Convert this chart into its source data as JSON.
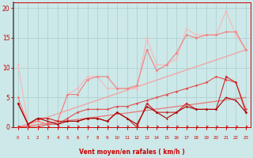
{
  "x": [
    0,
    1,
    2,
    3,
    4,
    5,
    6,
    7,
    8,
    9,
    10,
    11,
    12,
    13,
    14,
    15,
    16,
    17,
    18,
    19,
    20,
    21,
    22,
    23
  ],
  "series": {
    "line1_lightest": [
      10.5,
      0.5,
      1.0,
      0.5,
      1.0,
      5.5,
      6.5,
      8.5,
      8.5,
      6.5,
      6.5,
      6.5,
      6.5,
      15.0,
      10.5,
      10.5,
      11.5,
      16.5,
      15.5,
      15.5,
      15.5,
      19.5,
      15.5,
      13.0
    ],
    "line2_light": [
      5.0,
      0.5,
      1.0,
      0.5,
      1.0,
      5.5,
      5.5,
      8.0,
      8.5,
      8.5,
      6.5,
      6.5,
      7.0,
      13.0,
      9.5,
      10.5,
      12.5,
      15.5,
      15.0,
      15.5,
      15.5,
      16.0,
      16.0,
      13.0
    ],
    "trend1": [
      0.0,
      0.57,
      1.13,
      1.7,
      2.26,
      2.83,
      3.39,
      3.96,
      4.52,
      5.09,
      5.65,
      6.22,
      6.78,
      7.35,
      7.91,
      8.48,
      9.04,
      9.61,
      10.17,
      10.74,
      11.3,
      11.87,
      12.43,
      13.0
    ],
    "trend2": [
      0.0,
      0.22,
      0.43,
      0.65,
      0.87,
      1.09,
      1.3,
      1.52,
      1.74,
      1.96,
      2.17,
      2.39,
      2.61,
      2.83,
      3.04,
      3.26,
      3.48,
      3.7,
      3.91,
      4.13,
      4.35,
      4.57,
      4.78,
      5.0
    ],
    "line3_med": [
      0.0,
      0.0,
      0.0,
      0.5,
      0.5,
      1.5,
      2.5,
      3.0,
      3.0,
      3.0,
      3.5,
      3.5,
      4.0,
      4.5,
      5.0,
      5.5,
      6.0,
      6.5,
      7.0,
      7.5,
      8.5,
      8.0,
      7.5,
      3.0
    ],
    "line4_dark": [
      4.0,
      0.5,
      1.5,
      1.5,
      1.0,
      1.0,
      1.0,
      1.5,
      1.5,
      1.0,
      2.5,
      1.5,
      0.0,
      4.0,
      2.5,
      2.5,
      2.5,
      4.0,
      3.0,
      3.0,
      3.0,
      8.5,
      7.5,
      2.5
    ],
    "line5_darkest": [
      4.0,
      0.5,
      1.5,
      1.0,
      0.5,
      1.0,
      1.0,
      1.5,
      1.5,
      1.0,
      2.5,
      1.5,
      0.5,
      3.5,
      2.5,
      1.5,
      2.5,
      3.5,
      3.0,
      3.0,
      3.0,
      5.0,
      4.5,
      2.5
    ]
  },
  "colors": {
    "lightest": "#f8b8b8",
    "light": "#f08080",
    "medium": "#e05050",
    "dark": "#cc2222",
    "darkest": "#aa0000",
    "trend1": "#f4a0a0",
    "trend2": "#e87878"
  },
  "background": "#cce8e8",
  "grid_color": "#aacece",
  "xlabel": "Vent moyen/en rafales ( km/h )",
  "ylabel_ticks": [
    0,
    5,
    10,
    15,
    20
  ],
  "xlim": [
    0,
    23
  ],
  "ylim": [
    0,
    21
  ],
  "axis_color": "#cc0000",
  "arrow_color": "#cc0000"
}
